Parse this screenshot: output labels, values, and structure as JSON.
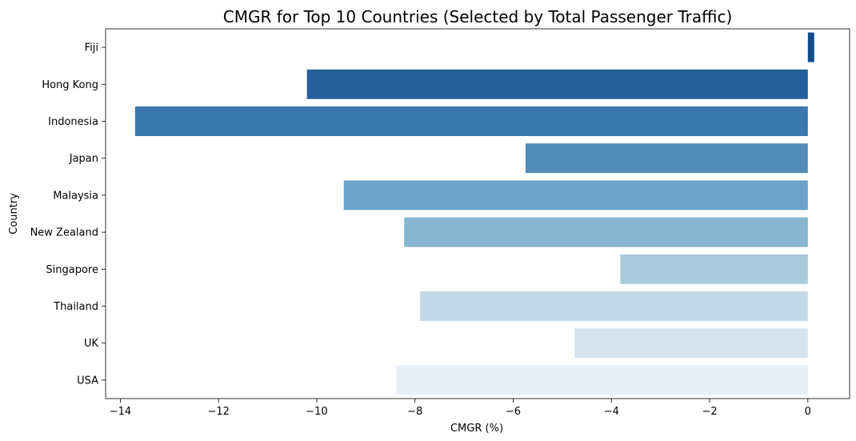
{
  "chart_data": {
    "type": "bar",
    "orientation": "horizontal",
    "title": "CMGR for Top 10 Countries (Selected by Total Passenger Traffic)",
    "xlabel": "CMGR (%)",
    "ylabel": "Country",
    "categories": [
      "Fiji",
      "Hong Kong",
      "Indonesia",
      "Japan",
      "Malaysia",
      "New Zealand",
      "Singapore",
      "Thailand",
      "UK",
      "USA"
    ],
    "values": [
      0.13,
      -10.2,
      -13.7,
      -5.75,
      -9.45,
      -8.22,
      -3.82,
      -7.9,
      -4.75,
      -8.38
    ],
    "colors": [
      "#134b8a",
      "#26609c",
      "#3a77ad",
      "#528dba",
      "#6ba3c9",
      "#88b5cf",
      "#a8cadc",
      "#c4d9e8",
      "#d6e4f0",
      "#e6eff8"
    ],
    "xlim": [
      -14.3,
      0.85
    ],
    "xticks": [
      -14,
      -12,
      -10,
      -8,
      -6,
      -4,
      -2,
      0
    ],
    "xtick_labels": [
      "−14",
      "−12",
      "−10",
      "−8",
      "−6",
      "−4",
      "−2",
      "0"
    ],
    "grid": false,
    "legend": "none"
  }
}
